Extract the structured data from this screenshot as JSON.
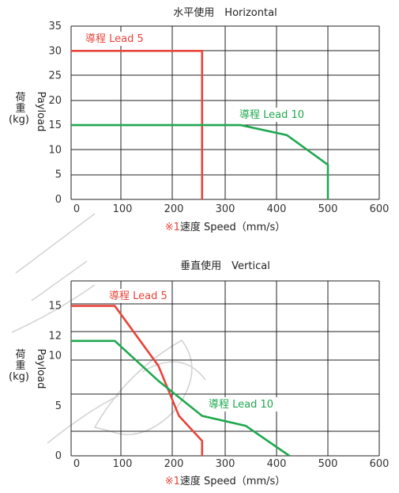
{
  "colors": {
    "lead5": "#e8443a",
    "lead10": "#1fa84f",
    "grid": "#222222",
    "watermark": "#cfcfcf"
  },
  "ylabel": {
    "jp1": "荷",
    "jp2": "重",
    "unit": "(kg)",
    "en": "Payload"
  },
  "chart_data": [
    {
      "type": "line",
      "title": "水平使用　Horizontal",
      "xlabel_note": "※1",
      "xlabel": "速度 Speed（mm/s）",
      "xlim": [
        0,
        600
      ],
      "ylim": [
        0,
        35
      ],
      "x_ticks": [
        0,
        100,
        200,
        300,
        400,
        500,
        600
      ],
      "y_ticks": [
        0,
        5,
        10,
        15,
        20,
        25,
        30,
        35
      ],
      "grid": true,
      "series": [
        {
          "name": "導程 Lead 5",
          "x": [
            0,
            255,
            255
          ],
          "y": [
            30,
            30,
            0
          ]
        },
        {
          "name": "導程 Lead 10",
          "x": [
            0,
            330,
            420,
            500,
            500
          ],
          "y": [
            15,
            15,
            13,
            7,
            0
          ]
        }
      ]
    },
    {
      "type": "line",
      "title": "垂直使用　Vertical",
      "xlabel_note": "※1",
      "xlabel": "速度 Speed（mm/s）",
      "xlim": [
        0,
        600
      ],
      "ylim": [
        0,
        17.5
      ],
      "x_ticks": [
        0,
        100,
        200,
        300,
        400,
        500,
        600
      ],
      "y_ticks": [
        0,
        5,
        10,
        12,
        15
      ],
      "grid": true,
      "series": [
        {
          "name": "導程 Lead 5",
          "x": [
            0,
            85,
            170,
            210,
            255,
            255
          ],
          "y": [
            15,
            15,
            9,
            4,
            1.5,
            0
          ]
        },
        {
          "name": "導程 Lead 10",
          "x": [
            0,
            85,
            170,
            255,
            340,
            425
          ],
          "y": [
            11.5,
            11.5,
            7.5,
            4,
            3,
            0
          ]
        }
      ]
    }
  ]
}
